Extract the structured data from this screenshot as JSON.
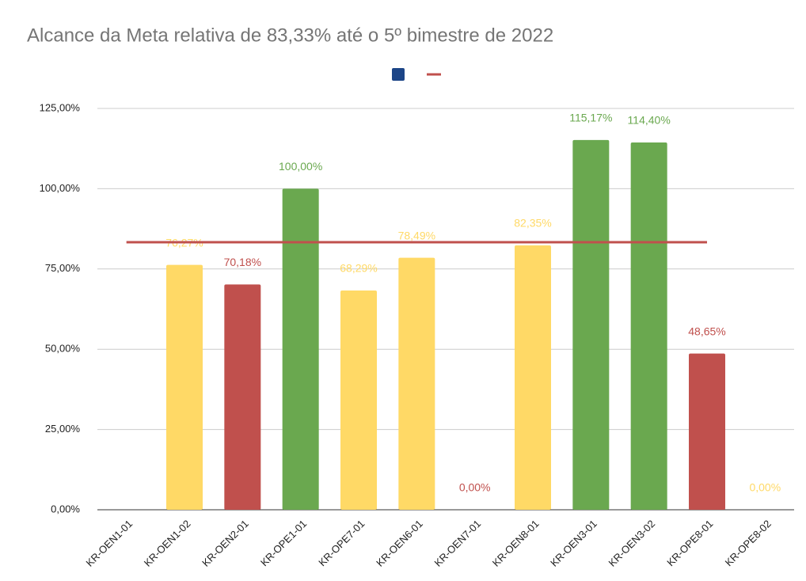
{
  "chart_data": {
    "type": "bar",
    "title": "Alcance da Meta relativa de 83,33% até o 5º bimestre de 2022",
    "categories": [
      "KR-OEN1-01",
      "KR-OEN1-02",
      "KR-OEN2-01",
      "KR-OPE1-01",
      "KR-OPE7-01",
      "KR-OEN6-01",
      "KR-OEN7-01",
      "KR-OEN8-01",
      "KR-OEN3-01",
      "KR-OEN3-02",
      "KR-OPE8-01",
      "KR-OPE8-02"
    ],
    "series": [
      {
        "type": "bar",
        "color": "#1c4587",
        "values": [
          null,
          76.27,
          70.18,
          100,
          68.29,
          78.49,
          0,
          82.35,
          115.17,
          114.4,
          48.65,
          0
        ],
        "value_labels": [
          null,
          "76,27%",
          "70,18%",
          "100,00%",
          "68,29%",
          "78,49%",
          "0,00%",
          "82,35%",
          "115,17%",
          "114,40%",
          "48,65%",
          "0,00%"
        ],
        "point_colors": [
          "#ffd966",
          "#ffd966",
          "#c0504d",
          "#6aa84f",
          "#ffd966",
          "#ffd966",
          "#c0504d",
          "#ffd966",
          "#6aa84f",
          "#6aa84f",
          "#c0504d",
          "#ffd966"
        ]
      },
      {
        "type": "line",
        "color": "#c0504d",
        "values": [
          83.33,
          83.33,
          83.33,
          83.33,
          83.33,
          83.33,
          83.33,
          83.33,
          83.33,
          83.33,
          83.33,
          null
        ]
      }
    ],
    "ylim": [
      0,
      125
    ],
    "yticks": [
      {
        "value": 0,
        "label": "0,00%"
      },
      {
        "value": 25,
        "label": "25,00%"
      },
      {
        "value": 50,
        "label": "50,00%"
      },
      {
        "value": 75,
        "label": "75,00%"
      },
      {
        "value": 100,
        "label": "100,00%"
      },
      {
        "value": 125,
        "label": "125,00%"
      }
    ],
    "grid": true,
    "legend": "top"
  }
}
